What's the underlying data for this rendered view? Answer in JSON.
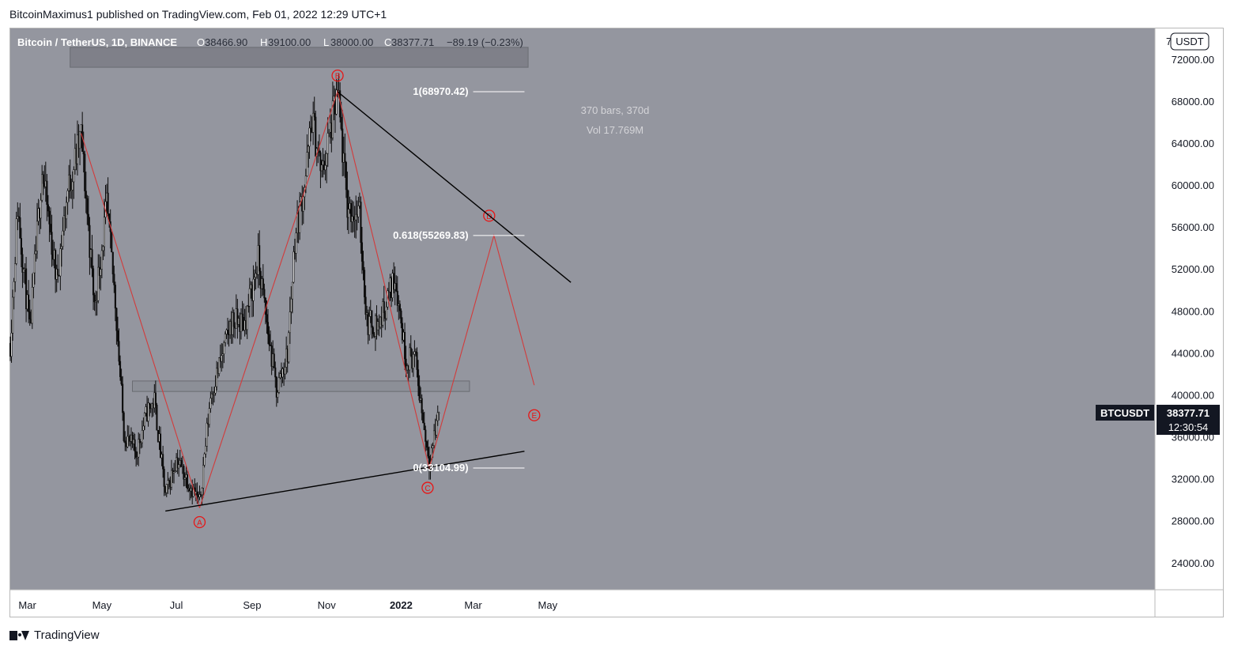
{
  "header": {
    "publisher": "BitcoinMaximus1 published on TradingView.com, Feb 01, 2022 12:29 UTC+1"
  },
  "legend": {
    "symbol": "Bitcoin / TetherUS, 1D, BINANCE",
    "o_label": "O",
    "o": "38466.90",
    "h_label": "H",
    "h": "39100.00",
    "l_label": "L",
    "l": "38000.00",
    "c_label": "C",
    "c": "38377.71",
    "change": "−89.19 (−0.23%)"
  },
  "currency_badge": "USDT",
  "axis_top_partial": "7",
  "footer": {
    "brand": "TradingView"
  },
  "colors": {
    "background": "#94969f",
    "candle": "#0c0c0c",
    "wave": "#d23b3b",
    "label_red": "#e81515",
    "trendline": "#000000",
    "fib": "#ffffff",
    "price_tag": "#131722"
  },
  "chart_data": {
    "type": "candlestick",
    "title": "Bitcoin / TetherUS, 1D, BINANCE",
    "ylim": [
      21500,
      75000
    ],
    "y_ticks": [
      "72000.00",
      "68000.00",
      "64000.00",
      "60000.00",
      "56000.00",
      "52000.00",
      "48000.00",
      "44000.00",
      "40000.00",
      "36000.00",
      "32000.00",
      "28000.00",
      "24000.00"
    ],
    "x_ticks": [
      "Mar",
      "May",
      "Jul",
      "Sep",
      "Nov",
      "2022",
      "Mar",
      "May"
    ],
    "price_path": [
      [
        "2021-02-15",
        45000
      ],
      [
        "2021-02-21",
        58000
      ],
      [
        "2021-03-03",
        46000
      ],
      [
        "2021-03-13",
        61500
      ],
      [
        "2021-03-25",
        51000
      ],
      [
        "2021-04-03",
        59500
      ],
      [
        "2021-04-14",
        64800
      ],
      [
        "2021-04-25",
        48500
      ],
      [
        "2021-05-05",
        58000
      ],
      [
        "2021-05-12",
        49000
      ],
      [
        "2021-05-19",
        36500
      ],
      [
        "2021-05-29",
        34500
      ],
      [
        "2021-06-07",
        38500
      ],
      [
        "2021-06-13",
        39500
      ],
      [
        "2021-06-22",
        30500
      ],
      [
        "2021-07-01",
        34000
      ],
      [
        "2021-07-20",
        29800
      ],
      [
        "2021-07-29",
        40000
      ],
      [
        "2021-08-08",
        44000
      ],
      [
        "2021-08-15",
        47000
      ],
      [
        "2021-08-26",
        47000
      ],
      [
        "2021-09-06",
        52900
      ],
      [
        "2021-09-14",
        46000
      ],
      [
        "2021-09-21",
        40500
      ],
      [
        "2021-09-30",
        44000
      ],
      [
        "2021-10-06",
        55000
      ],
      [
        "2021-10-15",
        61000
      ],
      [
        "2021-10-20",
        66500
      ],
      [
        "2021-10-28",
        61000
      ],
      [
        "2021-11-10",
        68800
      ],
      [
        "2021-11-18",
        58000
      ],
      [
        "2021-11-28",
        57000
      ],
      [
        "2021-12-04",
        47000
      ],
      [
        "2021-12-14",
        46800
      ],
      [
        "2021-12-27",
        51500
      ],
      [
        "2022-01-05",
        43500
      ],
      [
        "2022-01-12",
        43800
      ],
      [
        "2022-01-21",
        36000
      ],
      [
        "2022-01-24",
        33800
      ],
      [
        "2022-02-01",
        38377.71
      ]
    ],
    "wave_path": [
      [
        "A",
        "2021-07-20",
        29300
      ],
      [
        "B",
        "2021-11-10",
        69000
      ],
      [
        "C",
        "2022-01-24",
        33100
      ],
      [
        "D",
        "2022-03-18",
        55269.83
      ],
      [
        "E",
        "2022-04-20",
        41000
      ]
    ],
    "wave_lead_in": [
      [
        "2021-04-14",
        65000
      ],
      [
        "2021-07-20",
        29300
      ]
    ],
    "wave_labels": [
      "A",
      "B",
      "C",
      "D",
      "E"
    ],
    "trendlines": [
      {
        "name": "upper",
        "from": [
          "2021-11-10",
          68970
        ],
        "to": [
          "2022-05-20",
          50800
        ]
      },
      {
        "name": "lower",
        "from": [
          "2021-06-22",
          29000
        ],
        "to": [
          "2022-04-12",
          34700
        ]
      }
    ],
    "fib_levels": [
      {
        "label": "1(68970.42)",
        "value": 68970.42
      },
      {
        "label": "0.618(55269.83)",
        "value": 55269.83
      },
      {
        "label": "0(33104.99)",
        "value": 33104.99
      }
    ],
    "zones": [
      {
        "name": "top-resistance",
        "from": "2021-04-05",
        "to": "2022-04-15",
        "low": 71300,
        "high": 73200
      },
      {
        "name": "horizontal-resistance",
        "from": "2021-05-26",
        "to": "2022-02-26",
        "low": 40400,
        "high": 41400
      }
    ],
    "measure": {
      "bars": "370 bars, 370d",
      "volume": "Vol 17.769M"
    },
    "last_price": {
      "symbol": "BTCUSDT",
      "price": "38377.71",
      "countdown": "12:30:54",
      "value": 38377.71
    }
  }
}
